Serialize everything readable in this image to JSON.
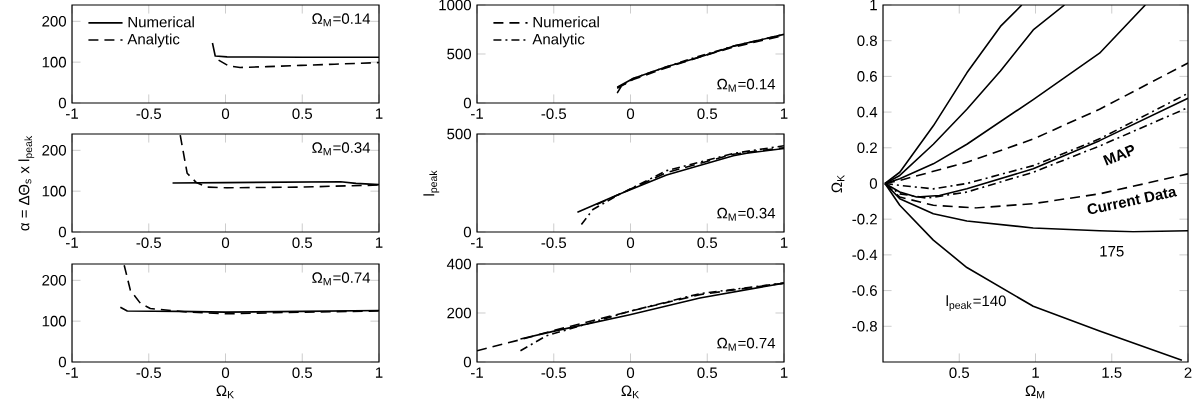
{
  "chart_data": [
    {
      "type": "line",
      "xlim": [
        -1,
        1
      ],
      "xticks": [
        -1,
        -0.5,
        0,
        0.5,
        1
      ],
      "ylim": [
        0,
        240
      ],
      "yticks": [
        0,
        100,
        200
      ],
      "legend": "top left",
      "annotations": [
        "Ω$_{M}$=0.14"
      ],
      "series": [
        {
          "name": "Numerical",
          "color": "#000000",
          "line_style": "solid",
          "x": [
            -0.085,
            -0.067,
            0.01,
            0.5,
            1
          ],
          "values": [
            147,
            115,
            113,
            112,
            112
          ]
        },
        {
          "name": "Analytic",
          "color": "#000000",
          "line_style": "dashed",
          "x": [
            -0.045,
            0.02,
            0.095,
            0.27,
            0.49,
            0.71,
            1
          ],
          "values": [
            105,
            91,
            87,
            89,
            92,
            95,
            99
          ]
        }
      ]
    },
    {
      "type": "line",
      "xlim": [
        -1,
        1
      ],
      "xticks": [
        -1,
        -0.5,
        0,
        0.5,
        1
      ],
      "ylim": [
        0,
        240
      ],
      "yticks": [
        0,
        100,
        200
      ],
      "ylabel": "α = ΔΘ$_{s}$ x l$_{peak}$",
      "annotations": [
        "Ω$_{M}$=0.34"
      ],
      "series": [
        {
          "color": "#000000",
          "line_style": "solid",
          "x": [
            -0.345,
            0.0,
            0.75,
            0.85,
            1
          ],
          "values": [
            120,
            121,
            123,
            119,
            116
          ]
        },
        {
          "color": "#000000",
          "line_style": "dashed",
          "x": [
            -0.295,
            -0.25,
            -0.19,
            -0.12,
            0.01,
            0.49,
            1
          ],
          "values": [
            237,
            144,
            121,
            110,
            108,
            110,
            115
          ]
        }
      ]
    },
    {
      "type": "line",
      "xlim": [
        -1,
        1
      ],
      "xticks": [
        -1,
        -0.5,
        0,
        0.5,
        1
      ],
      "ylim": [
        0,
        240
      ],
      "yticks": [
        0,
        100,
        200
      ],
      "xlabel": "Ω$_{K}$",
      "annotations": [
        "Ω$_{M}$=0.74"
      ],
      "series": [
        {
          "color": "#000000",
          "line_style": "solid",
          "x": [
            -0.685,
            -0.64,
            -0.3,
            0.0,
            0.5,
            1
          ],
          "values": [
            134,
            125,
            124,
            122,
            124,
            126
          ]
        },
        {
          "color": "#000000",
          "line_style": "dashed",
          "x": [
            -0.66,
            -0.62,
            -0.555,
            -0.49,
            -0.27,
            0.01,
            0.49,
            1
          ],
          "values": [
            237,
            176,
            144,
            131,
            123,
            118,
            122,
            125
          ]
        }
      ]
    },
    {
      "type": "line",
      "xlim": [
        -1,
        1
      ],
      "xticks": [
        -1,
        -0.5,
        0,
        0.5,
        1
      ],
      "ylim": [
        0,
        1000
      ],
      "yticks": [
        0,
        500,
        1000
      ],
      "legend": "top left",
      "annotations": [
        "Ω$_{M}$=0.14"
      ],
      "series": [
        {
          "color": "#000000",
          "line_style": "solid",
          "x": [
            -0.087,
            0.017,
            0.235,
            0.452,
            0.67,
            1
          ],
          "values": [
            160,
            250,
            370,
            470,
            580,
            700
          ]
        },
        {
          "name": "Numerical",
          "color": "#000000",
          "line_style": "dashed",
          "x": [
            -0.087,
            0.017,
            0.235,
            0.452,
            0.67,
            1
          ],
          "values": [
            150,
            240,
            360,
            470,
            570,
            690
          ]
        },
        {
          "name": "Analytic",
          "color": "#000000",
          "line_style": "dashdot",
          "x": [
            -0.087,
            -0.06,
            0.017,
            0.235,
            0.452,
            0.67,
            1
          ],
          "values": [
            100,
            170,
            250,
            370,
            480,
            580,
            700
          ]
        }
      ]
    },
    {
      "type": "line",
      "xlim": [
        -1,
        1
      ],
      "xticks": [
        -1,
        -0.5,
        0,
        0.5,
        1
      ],
      "ylim": [
        0,
        500
      ],
      "yticks": [
        0,
        500
      ],
      "ylabel": "l$_{peak}$",
      "annotations": [
        "Ω$_{M}$=0.34"
      ],
      "series": [
        {
          "color": "#000000",
          "line_style": "solid",
          "x": [
            -0.346,
            -0.09,
            0.235,
            0.67,
            0.757,
            1
          ],
          "values": [
            101,
            187,
            291,
            389,
            402,
            426
          ]
        },
        {
          "color": "#000000",
          "line_style": "dashed",
          "x": [
            -0.22,
            0.235,
            0.67,
            1
          ],
          "values": [
            140,
            303,
            397,
            430
          ]
        },
        {
          "color": "#000000",
          "line_style": "dashdot",
          "x": [
            -0.32,
            -0.245,
            -0.09,
            0.235,
            0.67,
            1
          ],
          "values": [
            38,
            115,
            185,
            313,
            401,
            440
          ]
        }
      ]
    },
    {
      "type": "line",
      "xlim": [
        -1,
        1
      ],
      "xticks": [
        -1,
        -0.5,
        0,
        0.5,
        1
      ],
      "ylim": [
        0,
        400
      ],
      "yticks": [
        0,
        200,
        400
      ],
      "xlabel": "Ω$_{K}$",
      "annotations": [
        "Ω$_{M}$=0.74"
      ],
      "series": [
        {
          "color": "#000000",
          "line_style": "solid",
          "x": [
            -0.717,
            -0.504,
            -0.004,
            0.452,
            1
          ],
          "values": [
            94,
            125,
            193,
            261,
            322
          ]
        },
        {
          "color": "#000000",
          "line_style": "dashed",
          "x": [
            -1,
            -0.717,
            -0.504,
            -0.004,
            0.452,
            1
          ],
          "values": [
            46,
            91,
            128,
            207,
            275,
            322
          ]
        },
        {
          "color": "#000000",
          "line_style": "dashdot",
          "x": [
            -0.717,
            -0.548,
            -0.004,
            0.452,
            1
          ],
          "values": [
            46,
            107,
            207,
            279,
            322
          ]
        }
      ]
    },
    {
      "type": "line",
      "xlim": [
        0,
        2
      ],
      "xticks": [
        0.5,
        1,
        1.5,
        2
      ],
      "ylim": [
        -1,
        1
      ],
      "yticks": [
        -0.8,
        -0.6,
        -0.4,
        -0.2,
        0,
        0.2,
        0.4,
        0.6,
        0.8,
        1
      ],
      "xlabel": "Ω$_{M}$",
      "ylabel": "Ω$_{K}$",
      "annotations": [
        "MAP",
        "Current Data",
        "175",
        "l$_{peak}$=140"
      ],
      "series": [
        {
          "color": "#000000",
          "line_style": "solid",
          "x": [
            0.013,
            0.11,
            0.33,
            0.55,
            0.77,
            0.91
          ],
          "values": [
            0,
            0.063,
            0.323,
            0.62,
            0.88,
            1.0
          ]
        },
        {
          "color": "#000000",
          "line_style": "solid",
          "x": [
            0.013,
            0.11,
            0.33,
            0.55,
            0.77,
            0.985,
            1.19
          ],
          "values": [
            0,
            0.045,
            0.22,
            0.416,
            0.63,
            0.86,
            1.0
          ]
        },
        {
          "color": "#000000",
          "line_style": "solid",
          "x": [
            0.013,
            0.11,
            0.33,
            0.55,
            0.985,
            1.42,
            1.72
          ],
          "values": [
            0,
            0.026,
            0.11,
            0.22,
            0.47,
            0.73,
            1.0
          ]
        },
        {
          "color": "#000000",
          "line_style": "dashed",
          "x": [
            0.013,
            0.11,
            0.55,
            0.985,
            1.42,
            2
          ],
          "values": [
            0,
            0.017,
            0.119,
            0.249,
            0.416,
            0.675
          ]
        },
        {
          "color": "#000000",
          "line_style": "dashdot",
          "x": [
            0.013,
            0.11,
            0.33,
            0.55,
            0.985,
            1.42,
            2
          ],
          "values": [
            0,
            -0.011,
            -0.03,
            0,
            0.1,
            0.25,
            0.505
          ]
        },
        {
          "color": "#000000",
          "line_style": "solid",
          "x": [
            0.013,
            0.11,
            0.22,
            0.37,
            0.55,
            0.985,
            1.42,
            2
          ],
          "values": [
            0,
            -0.048,
            -0.076,
            -0.067,
            -0.03,
            0.082,
            0.24,
            0.477
          ]
        },
        {
          "color": "#000000",
          "line_style": "dashdot",
          "x": [
            0.013,
            0.11,
            0.29,
            0.55,
            0.985,
            1.42,
            2
          ],
          "values": [
            0,
            -0.058,
            -0.082,
            -0.048,
            0.063,
            0.21,
            0.425
          ]
        },
        {
          "color": "#000000",
          "line_style": "dashed",
          "x": [
            0.013,
            0.11,
            0.33,
            0.61,
            0.985,
            1.42,
            2
          ],
          "values": [
            0,
            -0.076,
            -0.122,
            -0.137,
            -0.113,
            -0.058,
            0.054
          ]
        },
        {
          "color": "#000000",
          "line_style": "solid",
          "x": [
            0.013,
            0.11,
            0.33,
            0.55,
            0.985,
            1.42,
            1.64,
            2
          ],
          "values": [
            0,
            -0.085,
            -0.17,
            -0.21,
            -0.249,
            -0.265,
            -0.27,
            -0.265
          ]
        },
        {
          "color": "#000000",
          "line_style": "solid",
          "x": [
            0.013,
            0.11,
            0.33,
            0.55,
            0.985,
            1.42,
            1.96
          ],
          "values": [
            0,
            -0.122,
            -0.317,
            -0.471,
            -0.688,
            -0.827,
            -0.99
          ]
        }
      ]
    }
  ]
}
